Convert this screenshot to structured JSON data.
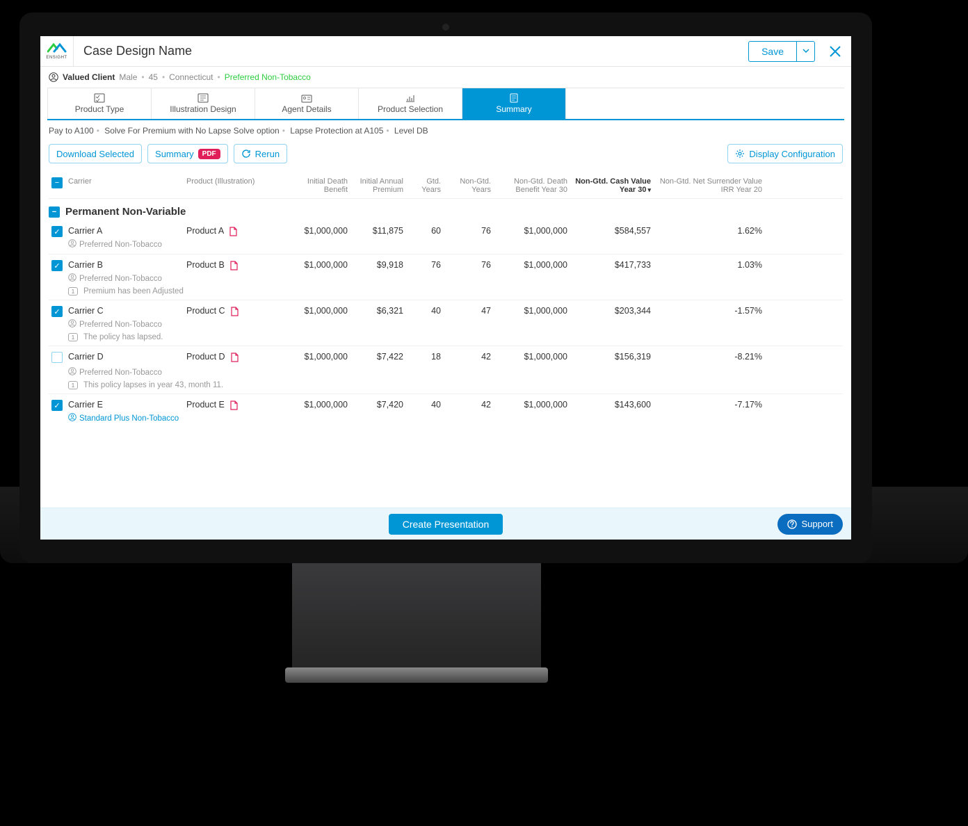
{
  "brand": {
    "name": "ENSIGHT"
  },
  "header": {
    "title": "Case Design Name",
    "save_label": "Save"
  },
  "client": {
    "name": "Valued Client",
    "gender": "Male",
    "age": "45",
    "state": "Connecticut",
    "risk_class": "Preferred Non-Tobacco"
  },
  "tabs": [
    {
      "label": "Product Type"
    },
    {
      "label": "Illustration Design"
    },
    {
      "label": "Agent Details"
    },
    {
      "label": "Product Selection"
    },
    {
      "label": "Summary",
      "active": true
    }
  ],
  "solve_breadcrumb": {
    "parts": [
      "Pay to A100",
      "Solve For Premium with No Lapse Solve option",
      "Lapse Protection at A105",
      "Level DB"
    ]
  },
  "actions": {
    "download_selected": "Download Selected",
    "summary": "Summary",
    "pdf_badge": "PDF",
    "rerun": "Rerun",
    "display_config": "Display Configuration"
  },
  "columns": {
    "carrier": "Carrier",
    "product": "Product (Illustration)",
    "init_db": "Initial Death Benefit",
    "init_prem": "Initial Annual Premium",
    "gtd_years": "Gtd. Years",
    "ngtd_years": "Non-Gtd. Years",
    "ngtd_db30": "Non-Gtd. Death Benefit Year 30",
    "ngtd_cash30": "Non-Gtd. Cash Value Year 30",
    "ngtd_irr20": "Non-Gtd. Net Surrender Value IRR Year 20"
  },
  "group": {
    "title": "Permanent Non-Variable"
  },
  "rows": [
    {
      "checked": true,
      "carrier": "Carrier A",
      "product": "Product A",
      "init_db": "$1,000,000",
      "init_prem": "$11,875",
      "gtd": "60",
      "ngtd": "76",
      "db30": "$1,000,000",
      "cash30": "$584,557",
      "irr20": "1.62%",
      "risk": "Preferred Non-Tobacco",
      "notes": []
    },
    {
      "checked": true,
      "carrier": "Carrier B",
      "product": "Product B",
      "init_db": "$1,000,000",
      "init_prem": "$9,918",
      "gtd": "76",
      "ngtd": "76",
      "db30": "$1,000,000",
      "cash30": "$417,733",
      "irr20": "1.03%",
      "risk": "Preferred Non-Tobacco",
      "notes": [
        "Premium has been Adjusted"
      ]
    },
    {
      "checked": true,
      "carrier": "Carrier C",
      "product": "Product C",
      "init_db": "$1,000,000",
      "init_prem": "$6,321",
      "gtd": "40",
      "ngtd": "47",
      "db30": "$1,000,000",
      "cash30": "$203,344",
      "irr20": "-1.57%",
      "risk": "Preferred Non-Tobacco",
      "notes": [
        "The policy has lapsed."
      ]
    },
    {
      "checked": false,
      "carrier": "Carrier D",
      "product": "Product D",
      "init_db": "$1,000,000",
      "init_prem": "$7,422",
      "gtd": "18",
      "ngtd": "42",
      "db30": "$1,000,000",
      "cash30": "$156,319",
      "irr20": "-8.21%",
      "risk": "Preferred Non-Tobacco",
      "notes": [
        "This policy lapses in year 43, month 11."
      ]
    },
    {
      "checked": true,
      "carrier": "Carrier E",
      "product": "Product E",
      "init_db": "$1,000,000",
      "init_prem": "$7,420",
      "gtd": "40",
      "ngtd": "42",
      "db30": "$1,000,000",
      "cash30": "$143,600",
      "irr20": "-7.17%",
      "risk": "Standard Plus Non-Tobacco",
      "risk_link": true,
      "notes": []
    }
  ],
  "footer": {
    "create": "Create Presentation",
    "support": "Support"
  },
  "colors": {
    "accent": "#0096d6",
    "green": "#2ecc40",
    "pdf_red": "#e01e5a",
    "support_blue": "#0b6dbf",
    "footer_bg": "#e9f6fc"
  }
}
